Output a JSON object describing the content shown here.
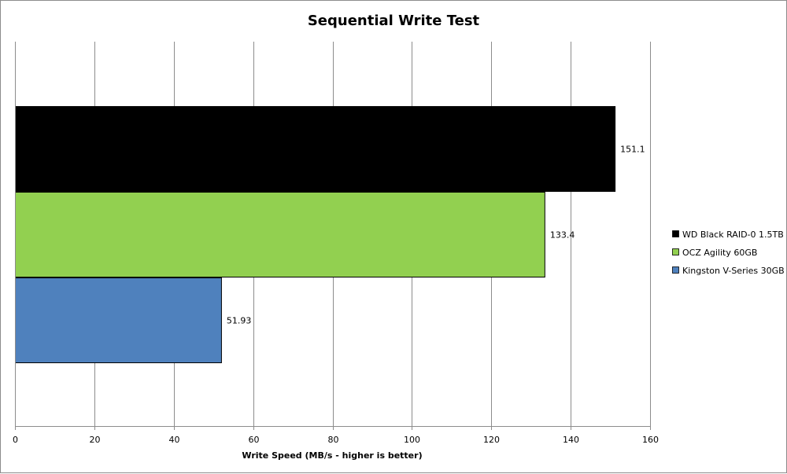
{
  "chart_data": {
    "type": "bar",
    "orientation": "horizontal",
    "title": "Sequential Write Test",
    "xlabel": "Write Speed (MB/s - higher is better)",
    "ylabel": "",
    "xlim": [
      0,
      160
    ],
    "xticks": [
      "0",
      "20",
      "40",
      "60",
      "80",
      "100",
      "120",
      "140",
      "160"
    ],
    "grid": true,
    "legend_position": "right",
    "series": [
      {
        "name": "WD Black RAID-0 1.5TB",
        "value": 151.1,
        "label": "151.1",
        "color": "#000000"
      },
      {
        "name": "OCZ Agility 60GB",
        "value": 133.4,
        "label": "133.4",
        "color": "#92d050"
      },
      {
        "name": "Kingston V-Series 30GB",
        "value": 51.93,
        "label": "51.93",
        "color": "#4f81bd"
      }
    ]
  }
}
